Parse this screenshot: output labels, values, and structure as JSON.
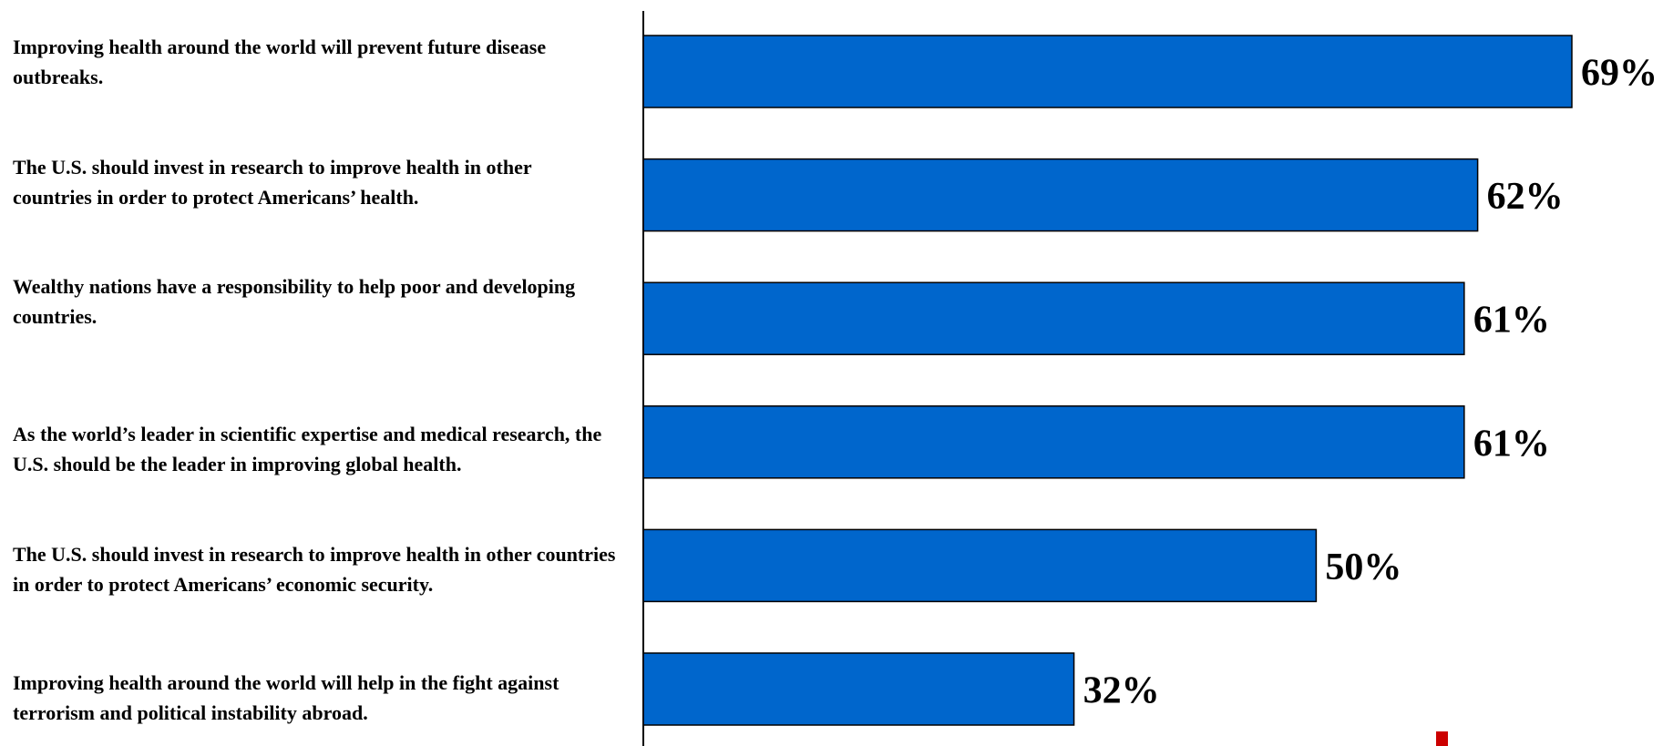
{
  "chart_data": {
    "type": "bar",
    "orientation": "horizontal",
    "categories": [
      "Improving health around the world will prevent future disease outbreaks.",
      "The U.S. should invest in research to improve health in other countries in order to protect Americans’ health.",
      "Wealthy nations have a responsibility to help poor and developing countries.",
      "As the world’s leader in scientific expertise and medical research, the U.S. should be the leader in improving global health.",
      "The U.S. should invest in research to improve health in other countries in order to protect Americans’ economic security.",
      "Improving health around the world will help in the fight against terrorism and political instability abroad."
    ],
    "values": [
      69,
      62,
      61,
      61,
      50,
      32
    ],
    "value_labels": [
      "69%",
      "62%",
      "61%",
      "61%",
      "50%",
      "32%"
    ],
    "xlim": [
      0,
      69
    ],
    "grid": false,
    "legend": "none"
  },
  "colors": {
    "bar_fill": "#0066CC",
    "bar_stroke": "#000000",
    "axis": "#000000",
    "text": "#000000",
    "accent_mark": "#CC0000"
  }
}
